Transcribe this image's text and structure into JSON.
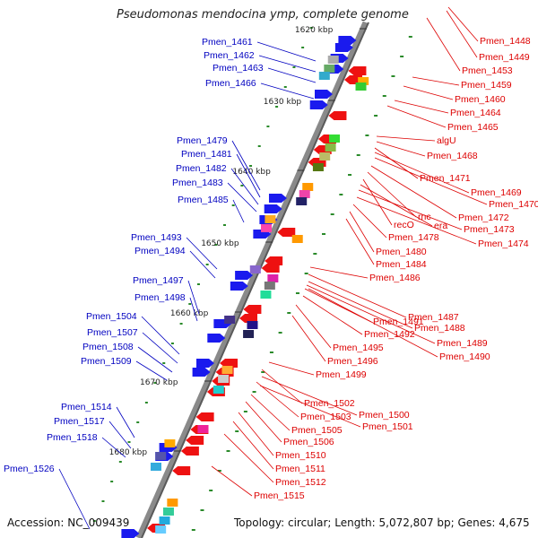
{
  "title": "Pseudomonas mendocina ymp, complete genome",
  "accession": "Accession: NC_009439",
  "topology": "Topology: circular; Length: 5,072,807 bp; Genes: 4,675",
  "colors": {
    "left_label": "#0000c0",
    "right_label": "#dd0000",
    "backbone": "#8a8a8a",
    "tick": "#2a8a2a"
  },
  "kbp_ticks": [
    "1620 kbp",
    "1630 kbp",
    "1640 kbp",
    "1650 kbp",
    "1660 kbp",
    "1670 kbp",
    "1680 kbp"
  ],
  "left_labels": [
    "Pmen_1461",
    "Pmen_1462",
    "Pmen_1463",
    "Pmen_1466",
    "Pmen_1479",
    "Pmen_1481",
    "Pmen_1482",
    "Pmen_1483",
    "Pmen_1485",
    "Pmen_1493",
    "Pmen_1494",
    "Pmen_1497",
    "Pmen_1498",
    "Pmen_1504",
    "Pmen_1507",
    "Pmen_1508",
    "Pmen_1509",
    "Pmen_1514",
    "Pmen_1517",
    "Pmen_1518",
    "Pmen_1526"
  ],
  "right_labels": [
    "Pmen_1448",
    "Pmen_1449",
    "Pmen_1453",
    "Pmen_1459",
    "Pmen_1460",
    "Pmen_1464",
    "Pmen_1465",
    "algU",
    "Pmen_1468",
    "Pmen_1471",
    "Pmen_1469",
    "Pmen_1470",
    "Pmen_1472",
    "rnc",
    "recO",
    "era",
    "Pmen_1473",
    "Pmen_1474",
    "Pmen_1478",
    "Pmen_1480",
    "Pmen_1484",
    "Pmen_1486",
    "Pmen_1487",
    "Pmen_1488",
    "Pmen_1491",
    "Pmen_1492",
    "Pmen_1489",
    "Pmen_1495",
    "Pmen_1490",
    "Pmen_1496",
    "Pmen_1499",
    "Pmen_1502",
    "Pmen_1500",
    "Pmen_1503",
    "Pmen_1501",
    "Pmen_1505",
    "Pmen_1506",
    "Pmen_1510",
    "Pmen_1511",
    "Pmen_1512",
    "Pmen_1515"
  ]
}
